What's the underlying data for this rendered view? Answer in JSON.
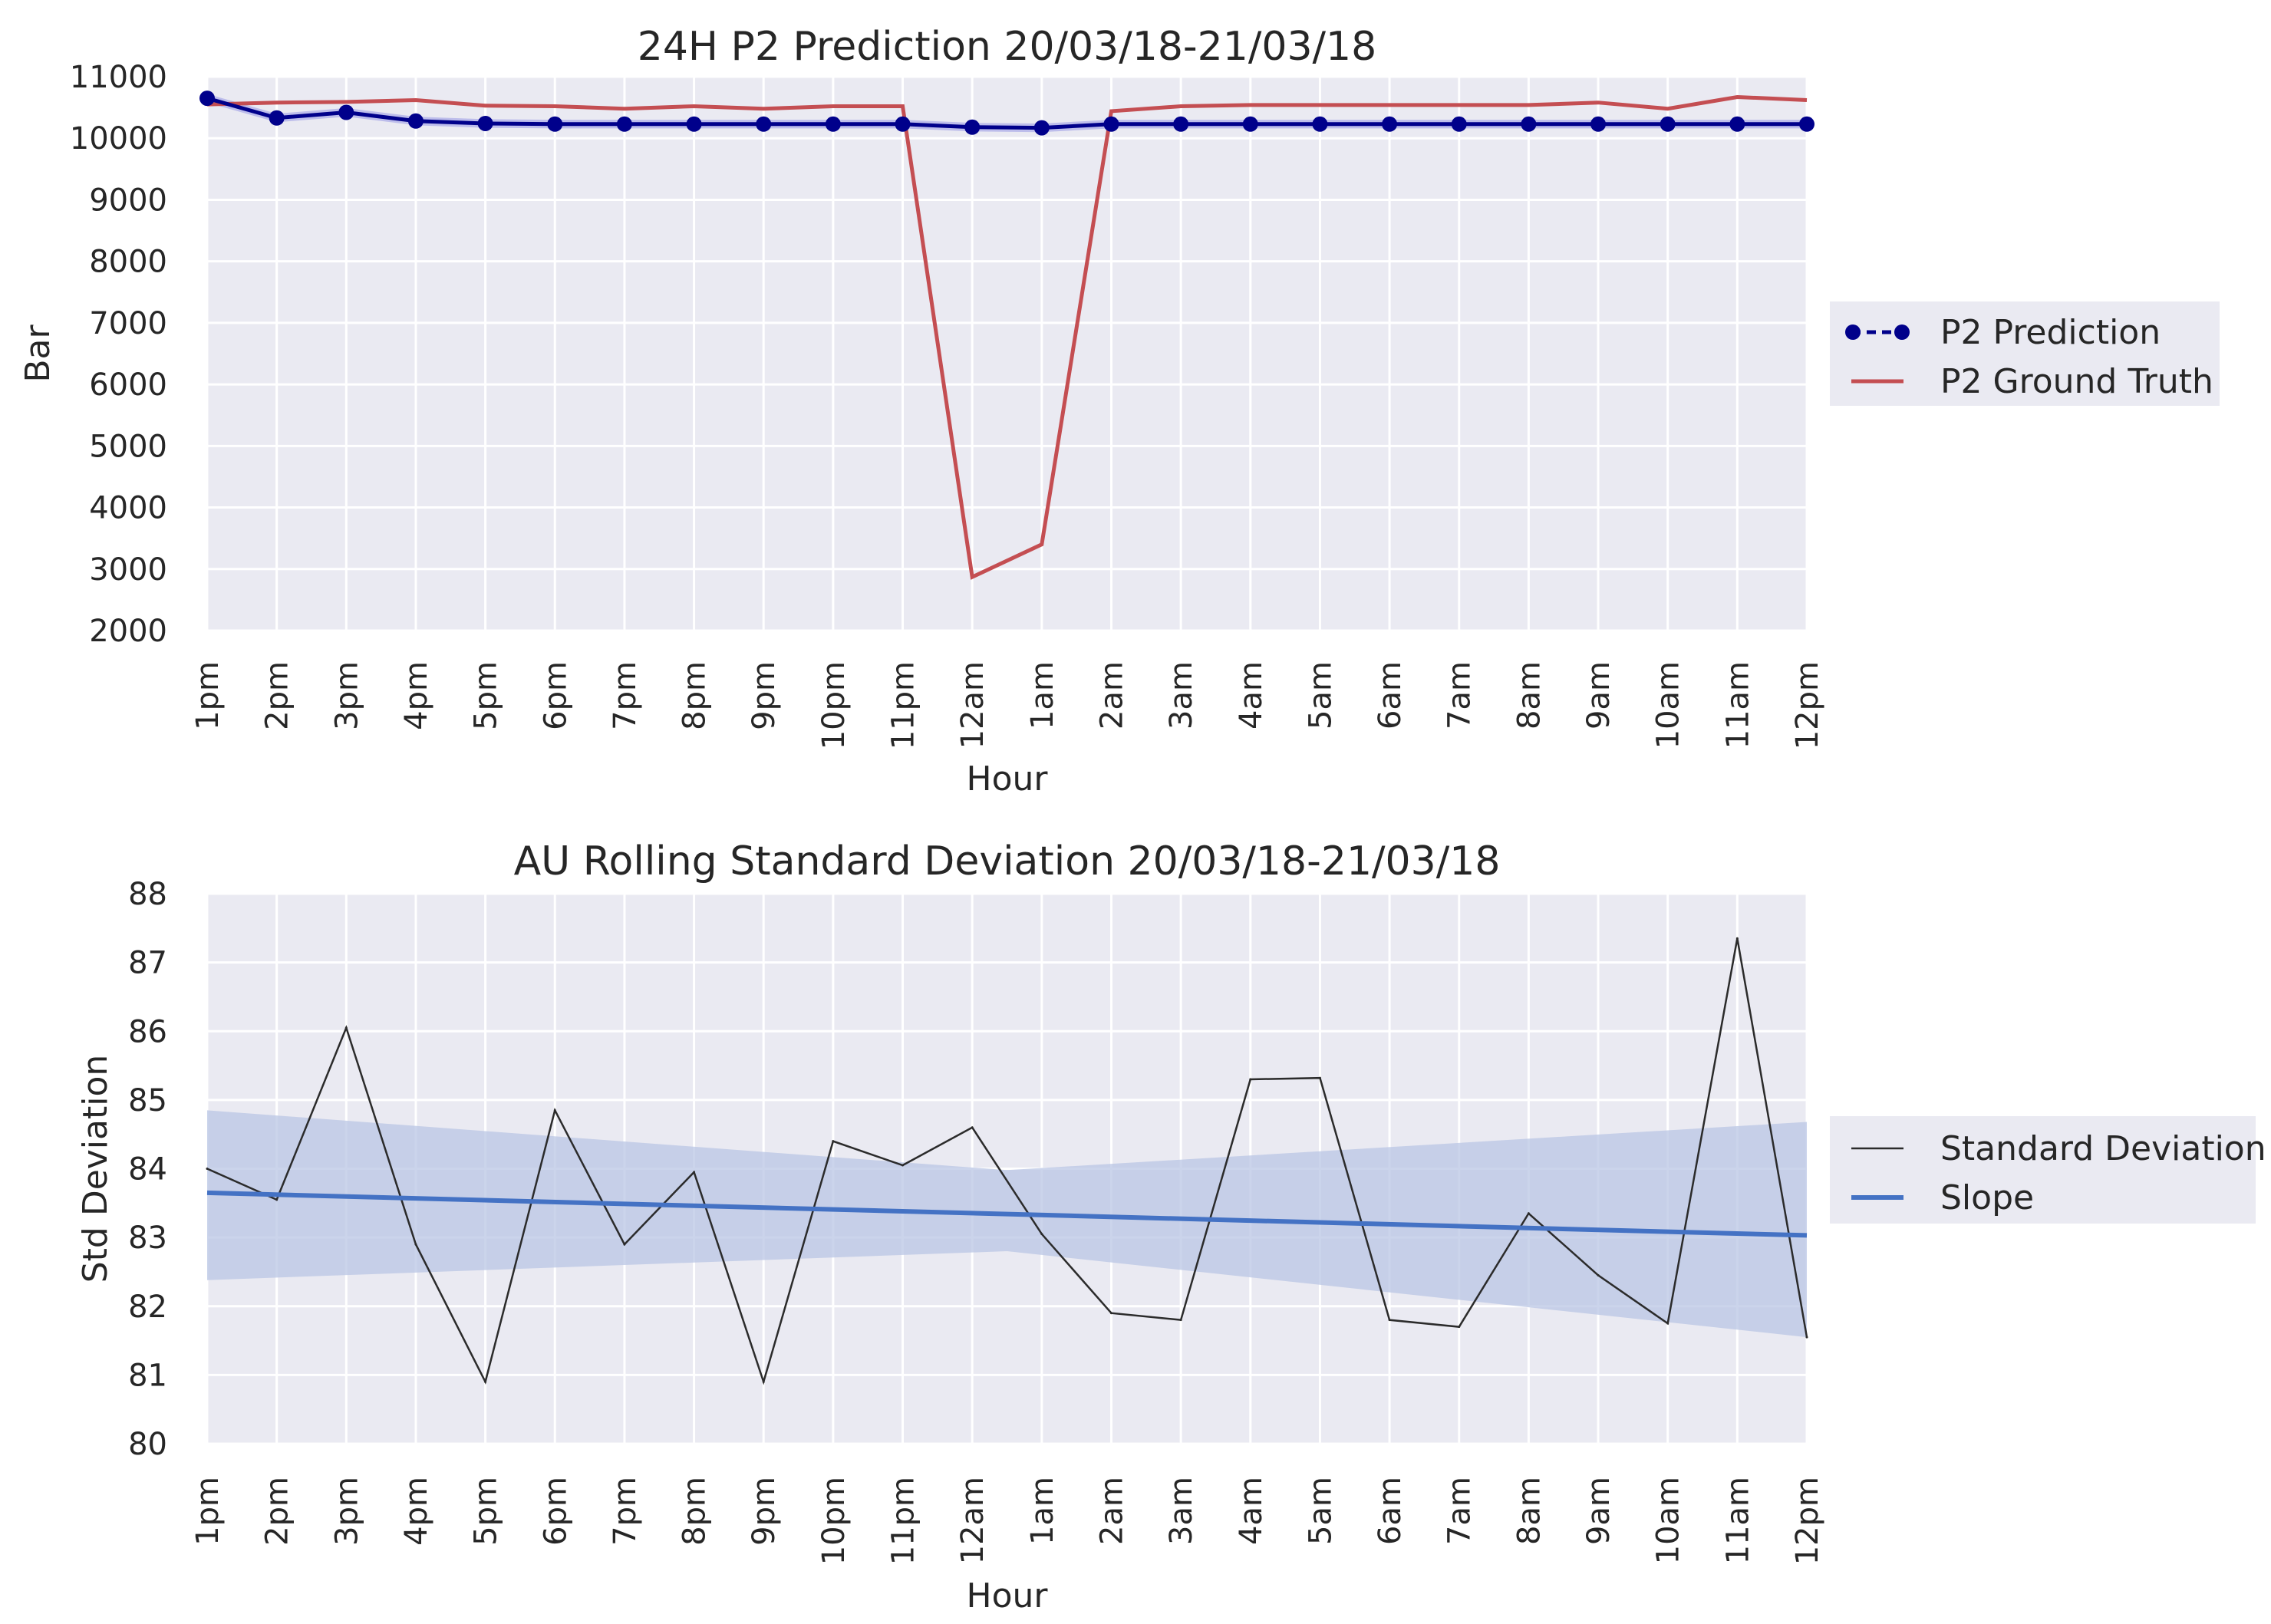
{
  "colors": {
    "panel_bg": "#eaeaf2",
    "grid": "#ffffff",
    "prediction": "#00008b",
    "prediction_band": "#6a6ae0",
    "ground_truth": "#c44e52",
    "std_line": "#2b2b2b",
    "slope": "#4472c4",
    "slope_band": "#b9c6e4"
  },
  "chart_data": [
    {
      "type": "line",
      "title": "24H P2 Prediction 20/03/18-21/03/18",
      "xlabel": "Hour",
      "ylabel": "Bar",
      "categories": [
        "1pm",
        "2pm",
        "3pm",
        "4pm",
        "5pm",
        "6pm",
        "7pm",
        "8pm",
        "9pm",
        "10pm",
        "11pm",
        "12am",
        "1am",
        "2am",
        "3am",
        "4am",
        "5am",
        "6am",
        "7am",
        "8am",
        "9am",
        "10am",
        "11am",
        "12pm"
      ],
      "yticks": [
        "2000",
        "3000",
        "4000",
        "5000",
        "6000",
        "7000",
        "8000",
        "9000",
        "10000",
        "11000"
      ],
      "ylim": [
        2000,
        11000
      ],
      "grid": true,
      "legend_position": "right",
      "series": [
        {
          "name": "P2 Prediction",
          "style": "line-with-markers",
          "values": [
            10650,
            10330,
            10420,
            10280,
            10240,
            10230,
            10230,
            10230,
            10230,
            10230,
            10230,
            10180,
            10170,
            10230,
            10230,
            10230,
            10230,
            10230,
            10230,
            10230,
            10230,
            10230,
            10230,
            10230
          ]
        },
        {
          "name": "P2 Ground Truth",
          "style": "line",
          "values": [
            10550,
            10580,
            10590,
            10620,
            10530,
            10520,
            10480,
            10520,
            10480,
            10520,
            10520,
            2870,
            3400,
            10440,
            10520,
            10540,
            10540,
            10540,
            10540,
            10540,
            10580,
            10480,
            10670,
            10620
          ]
        }
      ]
    },
    {
      "type": "line",
      "title": "AU Rolling Standard Deviation 20/03/18-21/03/18",
      "xlabel": "Hour",
      "ylabel": "Std Deviation",
      "categories": [
        "1pm",
        "2pm",
        "3pm",
        "4pm",
        "5pm",
        "6pm",
        "7pm",
        "8pm",
        "9pm",
        "10pm",
        "11pm",
        "12am",
        "1am",
        "2am",
        "3am",
        "4am",
        "5am",
        "6am",
        "7am",
        "8am",
        "9am",
        "10am",
        "11am",
        "12pm"
      ],
      "yticks": [
        "80",
        "81",
        "82",
        "83",
        "84",
        "85",
        "86",
        "87",
        "88"
      ],
      "ylim": [
        80,
        88
      ],
      "grid": true,
      "legend_position": "right",
      "series": [
        {
          "name": "Standard Deviation",
          "style": "line",
          "values": [
            84.0,
            83.55,
            86.05,
            82.9,
            80.9,
            84.85,
            82.9,
            83.95,
            80.9,
            84.4,
            84.05,
            84.6,
            83.05,
            81.9,
            81.8,
            85.3,
            85.32,
            81.8,
            81.7,
            83.35,
            82.45,
            81.75,
            87.35,
            81.55
          ]
        },
        {
          "name": "Slope",
          "style": "regression-line",
          "start": 83.65,
          "end": 83.03,
          "ci_start": [
            82.38,
            84.85
          ],
          "ci_mid": [
            82.8,
            83.98
          ],
          "ci_end": [
            81.55,
            84.68
          ]
        }
      ]
    }
  ]
}
